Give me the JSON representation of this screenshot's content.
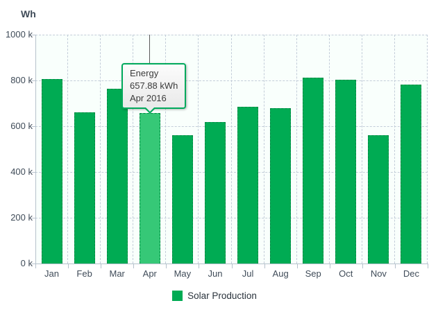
{
  "colors": {
    "bar": "#00ab53",
    "bar_border": "#008a43",
    "bar_highlight": "#36c877",
    "grid": "#c3cdd9",
    "axis_line": "#b6c2cc",
    "text": "#3f4b58",
    "plot_bg": "#f9fffc",
    "tooltip_border": "#00a95c",
    "crosshair": "#5a5a5a"
  },
  "chart_data": {
    "type": "bar",
    "title": "",
    "ylabel": "Wh",
    "categories": [
      "Jan",
      "Feb",
      "Mar",
      "Apr",
      "May",
      "Jun",
      "Jul",
      "Aug",
      "Sep",
      "Oct",
      "Nov",
      "Dec"
    ],
    "series": [
      {
        "name": "Solar Production",
        "unit": "kWh",
        "values": [
          805,
          660,
          765,
          657.88,
          562,
          618,
          685,
          678,
          812,
          802,
          560,
          782
        ]
      }
    ],
    "ylim": [
      0,
      1000
    ],
    "ytick_values": [
      0,
      200,
      400,
      600,
      800,
      1000
    ],
    "ytick_labels": [
      "0 k",
      "200 k",
      "400 k",
      "600 k",
      "800 k",
      "1000 k"
    ],
    "grid": true,
    "legend_position": "bottom",
    "highlight_index": 3,
    "highlighted_category": "Apr"
  },
  "tooltip": {
    "title": "Energy",
    "value": "657.88 kWh",
    "period": "Apr 2016"
  },
  "legend": {
    "label": "Solar Production"
  }
}
